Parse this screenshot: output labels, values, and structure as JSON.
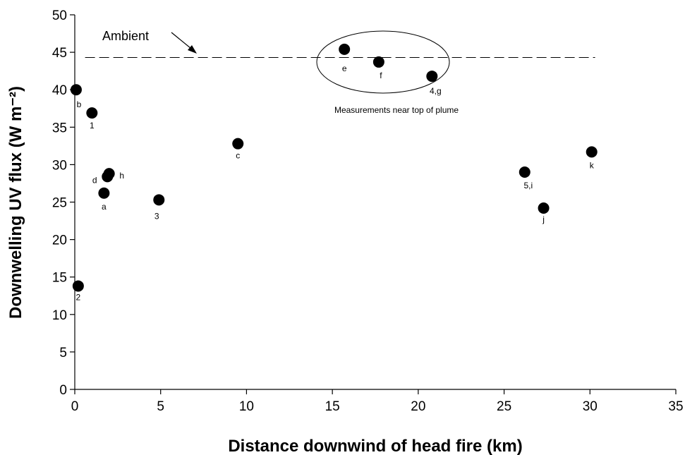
{
  "chart_data": {
    "type": "scatter",
    "x_label": "Distance downwind of head fire (km)",
    "y_label": "Downwelling UV flux (W m⁻²)",
    "x": [
      0.08,
      0.2,
      1.0,
      1.7,
      1.9,
      2.0,
      4.9,
      9.5,
      15.7,
      17.7,
      20.8,
      26.2,
      27.3,
      30.1
    ],
    "values": [
      40.0,
      13.8,
      36.9,
      26.2,
      28.4,
      28.8,
      25.3,
      32.8,
      45.4,
      43.7,
      41.8,
      29.0,
      24.2,
      31.7
    ],
    "point_labels": [
      "b",
      "2",
      "1",
      "a",
      "d",
      "h",
      "3",
      "c",
      "e",
      "f",
      "4,g",
      "5,i",
      "j",
      "k"
    ],
    "color": "#000000",
    "xlim": [
      0,
      35
    ],
    "xticks": [
      0,
      5,
      10,
      15,
      20,
      25,
      30,
      35
    ],
    "ylim": [
      0,
      50
    ],
    "yticks": [
      0,
      5,
      10,
      15,
      20,
      25,
      30,
      35,
      40,
      45,
      50
    ],
    "ambient": {
      "label": "Ambient",
      "value": 44.3,
      "x_range": [
        0.6,
        30.3
      ]
    },
    "annotation": "Measurements near top of plume"
  }
}
